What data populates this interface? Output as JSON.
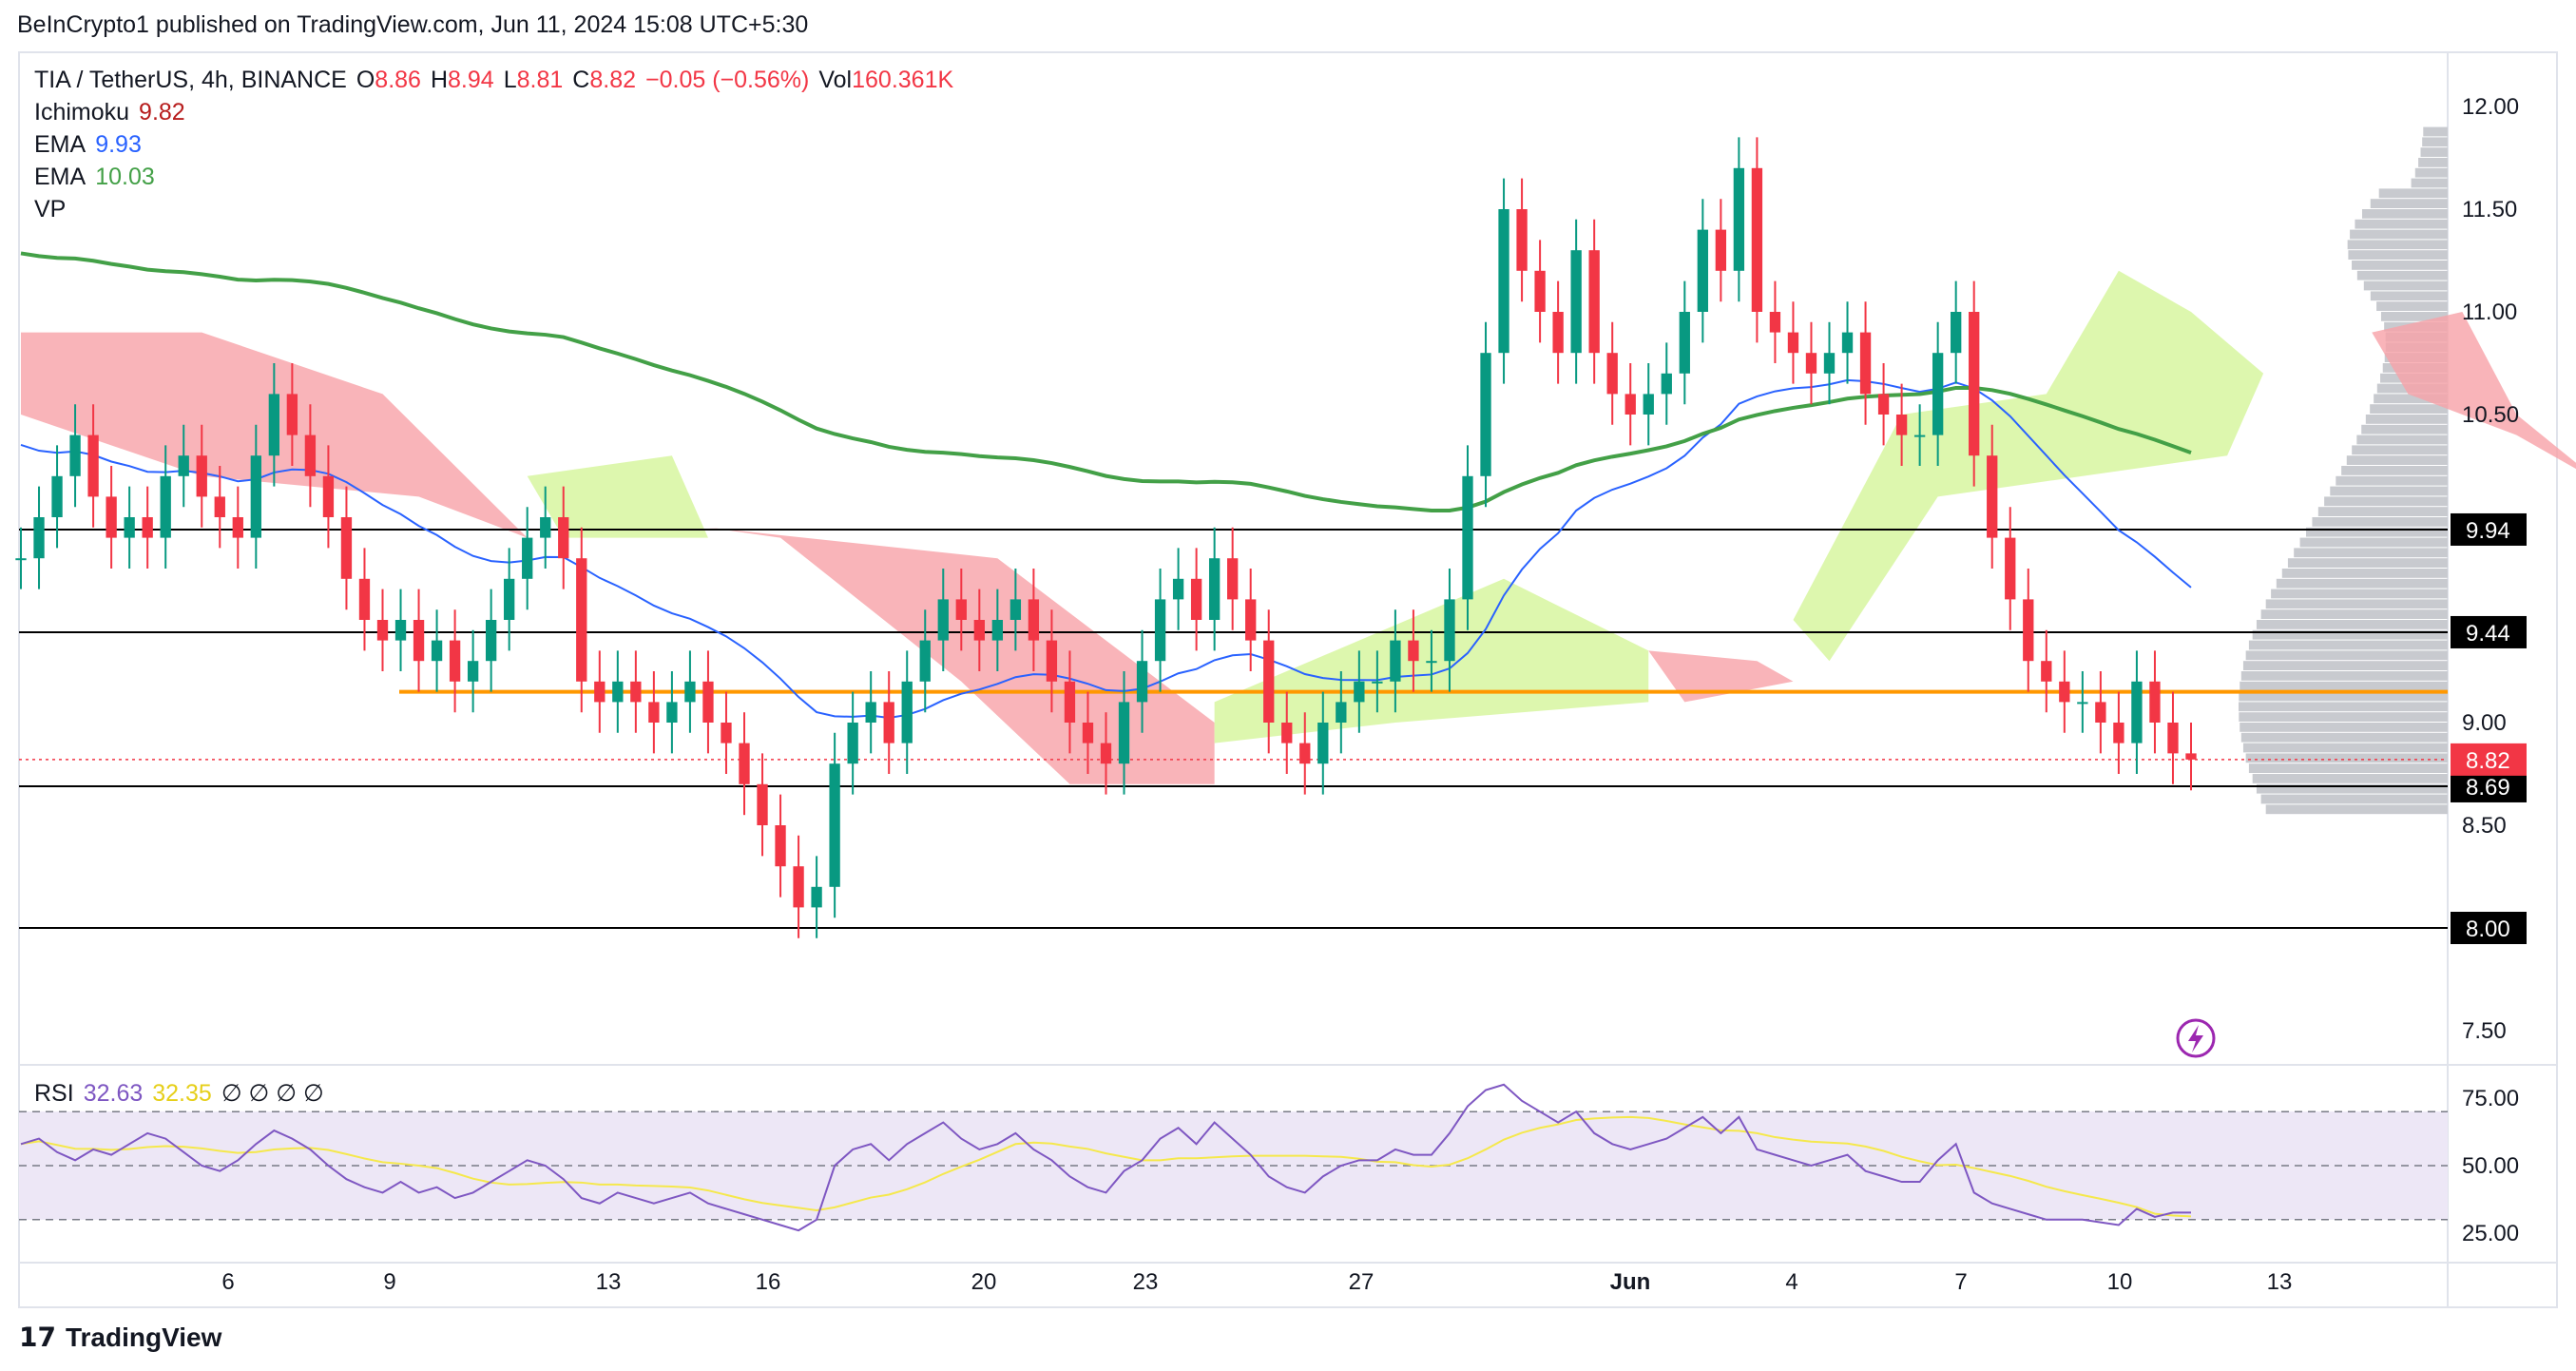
{
  "header": {
    "publisher_line": "BeInCrypto1 published on TradingView.com, Jun 11, 2024 15:08 UTC+5:30"
  },
  "legend": {
    "symbol": "TIA / TetherUS, 4h, BINANCE",
    "o_label": "O",
    "o_value": "8.86",
    "h_label": "H",
    "h_value": "8.94",
    "l_label": "L",
    "l_value": "8.81",
    "c_label": "C",
    "c_value": "8.82",
    "change": "−0.05 (−0.56%)",
    "vol_label": "Vol",
    "vol_value": "160.361K",
    "ichimoku_label": "Ichimoku",
    "ichimoku_value": "9.82",
    "ema1_label": "EMA",
    "ema1_value": "9.93",
    "ema2_label": "EMA",
    "ema2_value": "10.03",
    "vp_label": "VP"
  },
  "rsi_legend": {
    "label": "RSI",
    "value1": "32.63",
    "value2": "32.35",
    "empties": "∅ ∅ ∅ ∅"
  },
  "colors": {
    "up": "#089981",
    "down": "#f23645",
    "ema_fast": "#2962ff",
    "ema_slow": "#43a047",
    "cloud_bear": "#f7a1a7",
    "cloud_bull": "#d4f59a",
    "orange_line": "#ff9800",
    "vp": "#c8cacf",
    "rsi_line": "#7e57c2",
    "rsi_ma": "#f5e84c",
    "rsi_band": "#ede7f6"
  },
  "footer": {
    "brand": "TradingView"
  },
  "chart_data": {
    "type": "candlestick",
    "price_axis": {
      "ticks": [
        7.5,
        8.0,
        8.5,
        9.0,
        9.5,
        10.0,
        10.5,
        11.0,
        11.5,
        12.0
      ],
      "tick_labels": [
        "7.50",
        "",
        "8.50",
        "9.00",
        "",
        "",
        "10.50",
        "11.00",
        "11.50",
        "12.00"
      ]
    },
    "date_axis": {
      "labels": [
        "6",
        "9",
        "13",
        "16",
        "20",
        "23",
        "27",
        "Jun",
        "4",
        "7",
        "10",
        "13"
      ]
    },
    "horizontal_levels": [
      {
        "value": 9.94,
        "label": "9.94",
        "color": "#000000"
      },
      {
        "value": 9.44,
        "label": "9.44",
        "color": "#000000"
      },
      {
        "value": 8.69,
        "label": "8.69",
        "color": "#000000"
      },
      {
        "value": 8.0,
        "label": "8.00",
        "color": "#000000"
      },
      {
        "value": 9.15,
        "label": "",
        "color": "#ff9800"
      }
    ],
    "last_price": {
      "value": 8.82,
      "label": "8.82"
    },
    "ohlc_close_series": [
      9.8,
      10.0,
      10.2,
      10.4,
      10.1,
      9.9,
      10.0,
      9.9,
      10.2,
      10.3,
      10.1,
      10.0,
      9.9,
      10.3,
      10.6,
      10.4,
      10.2,
      10.0,
      9.7,
      9.5,
      9.4,
      9.5,
      9.3,
      9.4,
      9.2,
      9.3,
      9.5,
      9.7,
      9.9,
      10.0,
      9.8,
      9.2,
      9.1,
      9.2,
      9.1,
      9.0,
      9.1,
      9.2,
      9.0,
      8.9,
      8.7,
      8.5,
      8.3,
      8.1,
      8.2,
      8.8,
      9.0,
      9.1,
      8.9,
      9.2,
      9.4,
      9.6,
      9.5,
      9.4,
      9.5,
      9.6,
      9.4,
      9.2,
      9.0,
      8.9,
      8.8,
      9.1,
      9.3,
      9.6,
      9.7,
      9.5,
      9.8,
      9.6,
      9.4,
      9.0,
      8.9,
      8.8,
      9.0,
      9.1,
      9.2,
      9.2,
      9.4,
      9.3,
      9.3,
      9.6,
      10.2,
      10.8,
      11.5,
      11.2,
      11.0,
      10.8,
      11.3,
      10.8,
      10.6,
      10.5,
      10.6,
      10.7,
      11.0,
      11.4,
      11.2,
      11.7,
      11.0,
      10.9,
      10.8,
      10.7,
      10.8,
      10.9,
      10.6,
      10.5,
      10.4,
      10.4,
      10.8,
      11.0,
      10.3,
      9.9,
      9.6,
      9.3,
      9.2,
      9.1,
      9.1,
      9.0,
      8.9,
      9.2,
      9.0,
      8.85,
      8.82
    ],
    "ema_fast_last": 9.93,
    "ema_slow_last": 10.03,
    "ichimoku_last": 9.82,
    "rsi": {
      "axis_ticks": [
        25,
        50,
        75
      ],
      "tick_labels": [
        "25.00",
        "50.00",
        "75.00"
      ],
      "band": [
        30,
        70
      ],
      "rsi_last": 32.63,
      "ma_last": 32.35,
      "values": [
        58,
        60,
        55,
        52,
        56,
        54,
        58,
        62,
        60,
        55,
        50,
        48,
        52,
        58,
        63,
        60,
        56,
        50,
        45,
        42,
        40,
        44,
        40,
        42,
        38,
        40,
        44,
        48,
        52,
        50,
        45,
        38,
        36,
        40,
        38,
        36,
        38,
        40,
        36,
        34,
        32,
        30,
        28,
        26,
        30,
        50,
        56,
        58,
        52,
        58,
        62,
        66,
        60,
        56,
        58,
        62,
        56,
        52,
        46,
        42,
        40,
        48,
        52,
        60,
        64,
        58,
        66,
        60,
        54,
        46,
        42,
        40,
        46,
        50,
        52,
        52,
        56,
        54,
        54,
        62,
        72,
        78,
        80,
        74,
        70,
        66,
        70,
        62,
        58,
        56,
        58,
        60,
        64,
        68,
        62,
        68,
        56,
        54,
        52,
        50,
        52,
        54,
        48,
        46,
        44,
        44,
        52,
        58,
        40,
        36,
        34,
        32,
        30,
        30,
        30,
        29,
        28,
        34,
        31,
        32.6,
        32.6
      ]
    }
  }
}
